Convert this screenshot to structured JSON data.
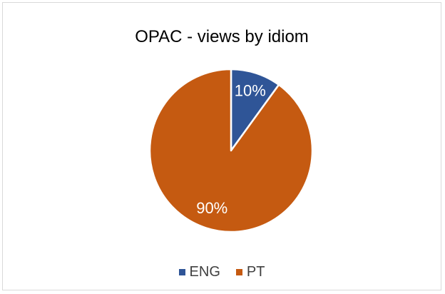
{
  "chart_data": {
    "type": "pie",
    "title": "OPAC - views by idiom",
    "categories": [
      "ENG",
      "PT"
    ],
    "values": [
      10,
      90
    ],
    "data_labels": [
      "10%",
      "90%"
    ],
    "colors": [
      "#2f5597",
      "#c55a11"
    ],
    "legend_position": "bottom"
  }
}
